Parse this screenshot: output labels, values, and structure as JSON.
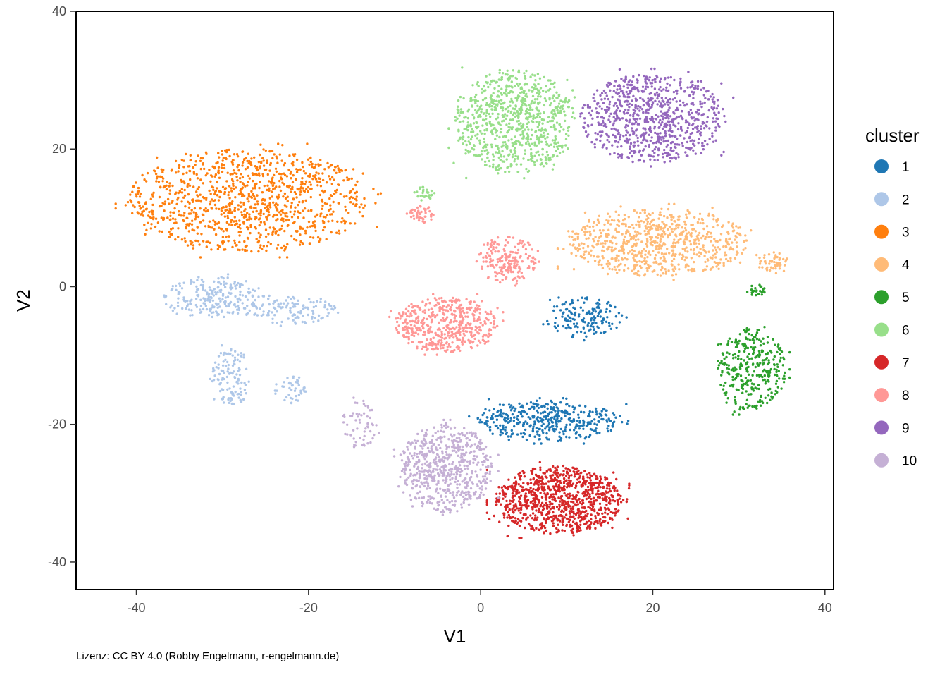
{
  "chart_data": {
    "type": "scatter",
    "title": "",
    "xlabel": "V1",
    "ylabel": "V2",
    "xlim": [
      -47,
      41
    ],
    "ylim": [
      -44,
      40
    ],
    "x_ticks": [
      -40,
      -20,
      0,
      20,
      40
    ],
    "y_ticks": [
      -40,
      -20,
      0,
      20,
      40
    ],
    "x_tick_labels": [
      "-40",
      "-20",
      "0",
      "20",
      "40"
    ],
    "y_tick_labels": [
      "-40",
      "-20",
      "0",
      "20",
      "40"
    ],
    "grid": false,
    "legend": {
      "title": "cluster",
      "position": "right"
    },
    "series": [
      {
        "name": "1",
        "color": "#1f77b4",
        "regions": [
          {
            "shape": "blob",
            "center": [
              8,
              -19.5
            ],
            "spread": [
              8.5,
              3
            ],
            "n": 420
          },
          {
            "shape": "blob",
            "center": [
              12,
              -4.5
            ],
            "spread": [
              4.5,
              3
            ],
            "n": 160
          }
        ]
      },
      {
        "name": "2",
        "color": "#aec7e8",
        "regions": [
          {
            "shape": "blob",
            "center": [
              -31,
              -1.5
            ],
            "spread": [
              6,
              3
            ],
            "n": 230
          },
          {
            "shape": "blob",
            "center": [
              -22,
              -3.5
            ],
            "spread": [
              5.5,
              2
            ],
            "n": 120
          },
          {
            "shape": "blob",
            "center": [
              -29,
              -13
            ],
            "spread": [
              2.2,
              4.5
            ],
            "n": 120
          },
          {
            "shape": "blob",
            "center": [
              -22,
              -15
            ],
            "spread": [
              2,
              2.2
            ],
            "n": 45
          }
        ]
      },
      {
        "name": "3",
        "color": "#ff7f0e",
        "regions": [
          {
            "shape": "blob",
            "center": [
              -27,
              12.5
            ],
            "spread": [
              14,
              7.5
            ],
            "n": 1100
          }
        ]
      },
      {
        "name": "4",
        "color": "#ffbb78",
        "regions": [
          {
            "shape": "blob",
            "center": [
              20.5,
              6.5
            ],
            "spread": [
              10.5,
              5
            ],
            "n": 750
          },
          {
            "shape": "blob",
            "center": [
              34,
              3.5
            ],
            "spread": [
              1.8,
              1.7
            ],
            "n": 50
          }
        ]
      },
      {
        "name": "5",
        "color": "#2ca02c",
        "regions": [
          {
            "shape": "blob",
            "center": [
              31.5,
              -12
            ],
            "spread": [
              4,
              6
            ],
            "n": 340
          },
          {
            "shape": "blob",
            "center": [
              32,
              -0.5
            ],
            "spread": [
              1.2,
              0.8
            ],
            "n": 25
          }
        ]
      },
      {
        "name": "6",
        "color": "#98df8a",
        "regions": [
          {
            "shape": "blob",
            "center": [
              4,
              24
            ],
            "spread": [
              7,
              7.5
            ],
            "n": 800
          },
          {
            "shape": "blob",
            "center": [
              -6.5,
              13.5
            ],
            "spread": [
              1.3,
              1
            ],
            "n": 30
          }
        ]
      },
      {
        "name": "7",
        "color": "#d62728",
        "regions": [
          {
            "shape": "blob",
            "center": [
              9,
              -31
            ],
            "spread": [
              7.5,
              5
            ],
            "n": 950
          }
        ]
      },
      {
        "name": "8",
        "color": "#ff9896",
        "regions": [
          {
            "shape": "blob",
            "center": [
              -4,
              -5.5
            ],
            "spread": [
              6,
              4
            ],
            "n": 520
          },
          {
            "shape": "blob",
            "center": [
              3,
              4
            ],
            "spread": [
              3.5,
              3.5
            ],
            "n": 200
          },
          {
            "shape": "blob",
            "center": [
              -7,
              10.5
            ],
            "spread": [
              1.6,
              1.3
            ],
            "n": 45
          }
        ]
      },
      {
        "name": "9",
        "color": "#9467bd",
        "regions": [
          {
            "shape": "blob",
            "center": [
              20,
              24.5
            ],
            "spread": [
              8.5,
              6.5
            ],
            "n": 800
          }
        ]
      },
      {
        "name": "10",
        "color": "#c5b0d5",
        "regions": [
          {
            "shape": "blob",
            "center": [
              -4,
              -26.5
            ],
            "spread": [
              5.5,
              6.5
            ],
            "n": 620
          },
          {
            "shape": "blob",
            "center": [
              -14,
              -20
            ],
            "spread": [
              2,
              3.5
            ],
            "n": 60
          }
        ]
      }
    ]
  },
  "caption": "Lizenz: CC BY 4.0 (Robby Engelmann, r-engelmann.de)"
}
